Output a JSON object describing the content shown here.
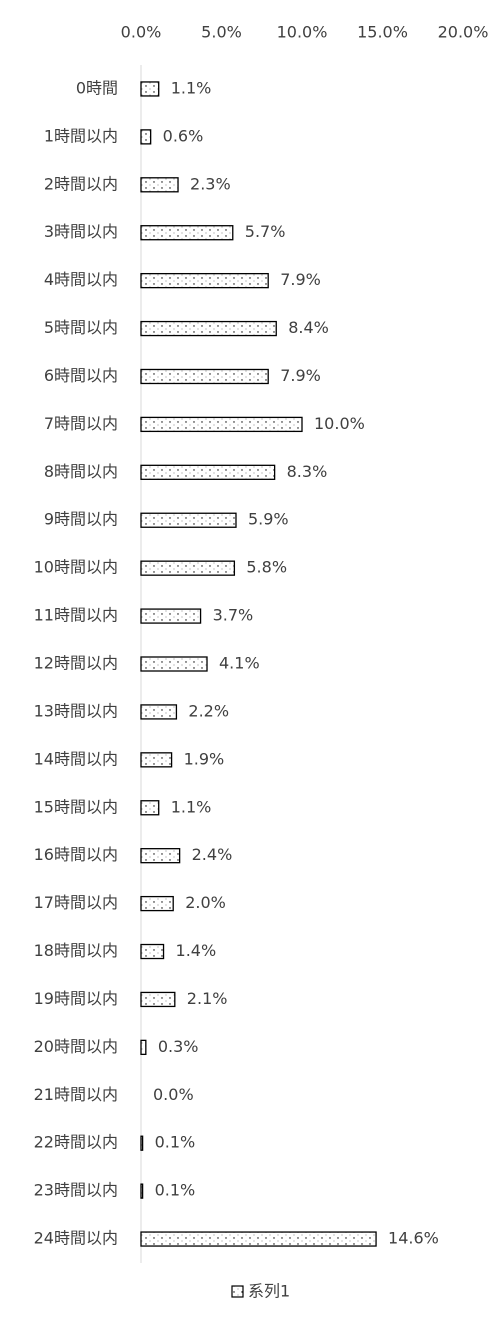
{
  "chart_data": {
    "type": "bar",
    "orientation": "horizontal",
    "categories": [
      "0時間",
      "1時間以内",
      "2時間以内",
      "3時間以内",
      "4時間以内",
      "5時間以内",
      "6時間以内",
      "7時間以内",
      "8時間以内",
      "9時間以内",
      "10時間以内",
      "11時間以内",
      "12時間以内",
      "13時間以内",
      "14時間以内",
      "15時間以内",
      "16時間以内",
      "17時間以内",
      "18時間以内",
      "19時間以内",
      "20時間以内",
      "21時間以内",
      "22時間以内",
      "23時間以内",
      "24時間以内"
    ],
    "series": [
      {
        "name": "系列1",
        "color": "#000000",
        "values": [
          1.1,
          0.6,
          2.3,
          5.7,
          7.9,
          8.4,
          7.9,
          10.0,
          8.3,
          5.9,
          5.8,
          3.7,
          4.1,
          2.2,
          1.9,
          1.1,
          2.4,
          2.0,
          1.4,
          2.1,
          0.3,
          0.0,
          0.1,
          0.1,
          14.6
        ],
        "value_labels": [
          "1.1%",
          "0.6%",
          "2.3%",
          "5.7%",
          "7.9%",
          "8.4%",
          "7.9%",
          "10.0%",
          "8.3%",
          "5.9%",
          "5.8%",
          "3.7%",
          "4.1%",
          "2.2%",
          "1.9%",
          "1.1%",
          "2.4%",
          "2.0%",
          "1.4%",
          "2.1%",
          "0.3%",
          "0.0%",
          "0.1%",
          "0.1%",
          "14.6%"
        ]
      }
    ],
    "xlim": [
      0,
      20
    ],
    "xticks": [
      {
        "value": 0,
        "label": "0.0%"
      },
      {
        "value": 5,
        "label": "5.0%"
      },
      {
        "value": 10,
        "label": "10.0%"
      },
      {
        "value": 15,
        "label": "15.0%"
      },
      {
        "value": 20,
        "label": "20.0%"
      }
    ],
    "legend": "bottom",
    "grid": false
  }
}
